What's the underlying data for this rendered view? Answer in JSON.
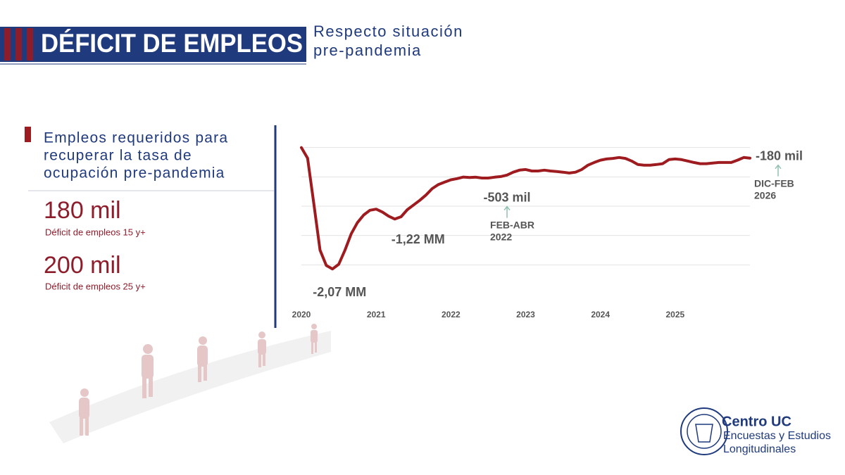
{
  "header": {
    "title": "DÉFICIT DE EMPLEOS",
    "subtitle": [
      "Respecto situación",
      "pre-pandemia"
    ]
  },
  "panel": {
    "heading": [
      "Empleos requeridos para",
      "recuperar la tasa de",
      "ocupación pre-pandemia"
    ],
    "stats": [
      {
        "value": "180 mil",
        "label": "Déficit de empleos 15 y+"
      },
      {
        "value": "200 mil",
        "label": "Déficit de empleos 25 y+"
      }
    ]
  },
  "logo": {
    "name": "Centro UC",
    "lines": [
      "Encuestas y Estudios",
      "Longitudinales"
    ]
  },
  "chart_data": {
    "type": "line",
    "color": "#9e1b1f",
    "grid": true,
    "categories": [
      "2020",
      null,
      null,
      null,
      null,
      null,
      null,
      null,
      null,
      null,
      null,
      null,
      "2021",
      null,
      null,
      null,
      null,
      null,
      null,
      null,
      null,
      null,
      null,
      null,
      "2022",
      null,
      null,
      null,
      null,
      null,
      null,
      null,
      null,
      null,
      null,
      null,
      "2023",
      null,
      null,
      null,
      null,
      null,
      null,
      null,
      null,
      null,
      null,
      null,
      "2024",
      null,
      null,
      null,
      null,
      null,
      null,
      null,
      null,
      null,
      null,
      null,
      "2025",
      null,
      null,
      null,
      null,
      null,
      null,
      null,
      null,
      null,
      null,
      null,
      null
    ],
    "values": [
      0,
      -180,
      -960,
      -1750,
      -2010,
      -2070,
      -1990,
      -1750,
      -1470,
      -1280,
      -1150,
      -1070,
      -1050,
      -1100,
      -1170,
      -1220,
      -1180,
      -1060,
      -980,
      -900,
      -810,
      -700,
      -630,
      -590,
      -550,
      -530,
      -503,
      -510,
      -505,
      -520,
      -520,
      -505,
      -495,
      -470,
      -420,
      -385,
      -375,
      -400,
      -400,
      -385,
      -400,
      -410,
      -420,
      -435,
      -420,
      -375,
      -300,
      -255,
      -215,
      -195,
      -185,
      -170,
      -185,
      -230,
      -290,
      -300,
      -300,
      -290,
      -275,
      -205,
      -195,
      -205,
      -230,
      -255,
      -275,
      -275,
      -265,
      -255,
      -255,
      -255,
      -215,
      -170,
      -180
    ],
    "ylim": [
      -2500,
      200
    ],
    "yticks": [
      -2000,
      -1500,
      -1000,
      -500,
      0
    ],
    "annotations": [
      {
        "text": "-2,07 MM",
        "value": -2070
      },
      {
        "text": "-1,22 MM",
        "value": -1220
      },
      {
        "text": "-503 mil",
        "value": -503,
        "period": [
          "FEB-ABR",
          "2022"
        ]
      },
      {
        "text": "-180 mil",
        "value": -180,
        "period": [
          "DIC-FEB",
          "2026"
        ]
      }
    ]
  }
}
